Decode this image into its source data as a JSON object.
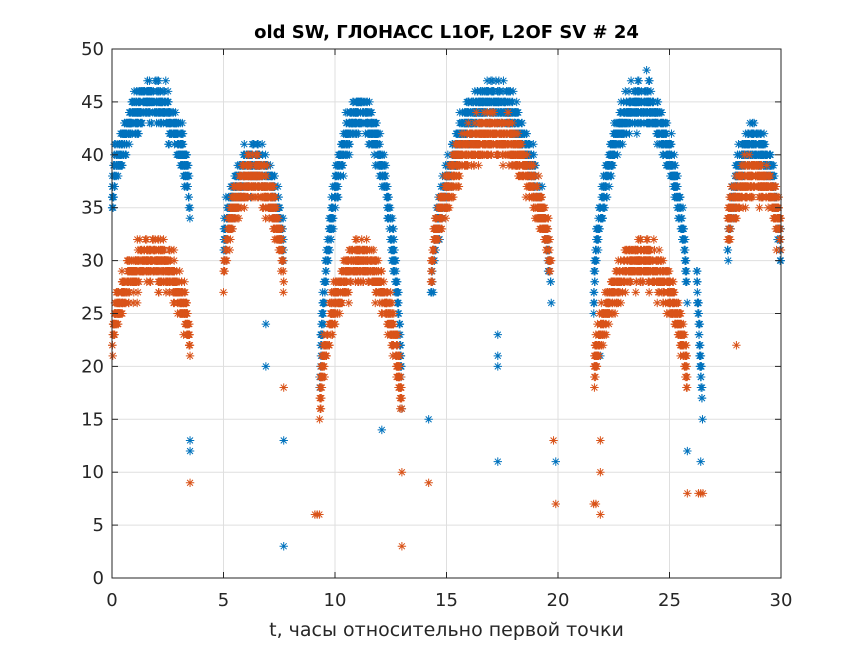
{
  "chart_data": {
    "type": "scatter",
    "title": "old SW, ГЛОНАСС L1OF, L2OF SV # 24",
    "xlabel": "t, часы относительно первой точки",
    "ylabel": "",
    "xlim": [
      0,
      30
    ],
    "ylim": [
      0,
      50
    ],
    "xticks": [
      "0",
      "5",
      "10",
      "15",
      "20",
      "25",
      "30"
    ],
    "yticks": [
      "0",
      "5",
      "10",
      "15",
      "20",
      "25",
      "30",
      "35",
      "40",
      "45",
      "50"
    ],
    "grid": true,
    "marker": "asterisk",
    "colors": {
      "L1OF": "#0072BD",
      "L2OF": "#D95319"
    },
    "series": [
      {
        "name": "L1OF",
        "color": "#0072BD",
        "arcs": [
          {
            "x": [
              0.0,
              3.5
            ],
            "peak": 45,
            "edge": 35,
            "shape": "arch"
          },
          {
            "x": [
              5.0,
              7.7
            ],
            "peak": 39,
            "edge": 30,
            "shape": "arch"
          },
          {
            "x": [
              9.3,
              13.0
            ],
            "peak": 44,
            "edge": 16,
            "shape": "arch"
          },
          {
            "x": [
              14.3,
              19.7
            ],
            "peak": 45,
            "edge": 26,
            "shape": "arch"
          },
          {
            "x": [
              21.6,
              25.8
            ],
            "peak": 45,
            "edge": 26,
            "shape": "arch"
          },
          {
            "x": [
              26.2,
              26.5
            ],
            "peak": 30,
            "edge": 15,
            "shape": "line"
          },
          {
            "x": [
              27.6,
              30.0
            ],
            "peak": 41,
            "edge": 30,
            "shape": "arch"
          }
        ],
        "outliers": [
          {
            "x": 3.5,
            "y": 12
          },
          {
            "x": 3.5,
            "y": 13
          },
          {
            "x": 6.9,
            "y": 24
          },
          {
            "x": 6.9,
            "y": 20
          },
          {
            "x": 7.7,
            "y": 13
          },
          {
            "x": 7.7,
            "y": 3
          },
          {
            "x": 12.1,
            "y": 14
          },
          {
            "x": 14.2,
            "y": 15
          },
          {
            "x": 17.3,
            "y": 11
          },
          {
            "x": 17.3,
            "y": 20
          },
          {
            "x": 17.3,
            "y": 21
          },
          {
            "x": 17.3,
            "y": 23
          },
          {
            "x": 19.9,
            "y": 11
          },
          {
            "x": 21.9,
            "y": 21
          },
          {
            "x": 26.4,
            "y": 11
          },
          {
            "x": 25.8,
            "y": 12
          }
        ]
      },
      {
        "name": "L2OF",
        "color": "#D95319",
        "arcs": [
          {
            "x": [
              0.0,
              3.5
            ],
            "peak": 30,
            "edge": 22,
            "shape": "arch"
          },
          {
            "x": [
              5.0,
              7.7
            ],
            "peak": 38,
            "edge": 28,
            "shape": "arch"
          },
          {
            "x": [
              9.3,
              13.0
            ],
            "peak": 30,
            "edge": 15,
            "shape": "arch"
          },
          {
            "x": [
              14.3,
              19.7
            ],
            "peak": 42,
            "edge": 28,
            "shape": "arch"
          },
          {
            "x": [
              21.6,
              25.8
            ],
            "peak": 30,
            "edge": 18,
            "shape": "arch"
          },
          {
            "x": [
              27.6,
              30.0
            ],
            "peak": 38,
            "edge": 32,
            "shape": "arch"
          }
        ],
        "outliers": [
          {
            "x": 3.5,
            "y": 9
          },
          {
            "x": 7.7,
            "y": 18
          },
          {
            "x": 9.2,
            "y": 6
          },
          {
            "x": 9.1,
            "y": 6
          },
          {
            "x": 9.3,
            "y": 6
          },
          {
            "x": 13.0,
            "y": 3
          },
          {
            "x": 13.0,
            "y": 10
          },
          {
            "x": 14.2,
            "y": 9
          },
          {
            "x": 19.9,
            "y": 7
          },
          {
            "x": 19.8,
            "y": 13
          },
          {
            "x": 21.6,
            "y": 7
          },
          {
            "x": 21.7,
            "y": 7
          },
          {
            "x": 21.9,
            "y": 6
          },
          {
            "x": 21.9,
            "y": 10
          },
          {
            "x": 21.9,
            "y": 13
          },
          {
            "x": 25.8,
            "y": 8
          },
          {
            "x": 26.4,
            "y": 8
          },
          {
            "x": 26.3,
            "y": 8
          },
          {
            "x": 26.5,
            "y": 8
          },
          {
            "x": 28.0,
            "y": 22
          },
          {
            "x": 29.8,
            "y": 31
          }
        ]
      }
    ]
  }
}
